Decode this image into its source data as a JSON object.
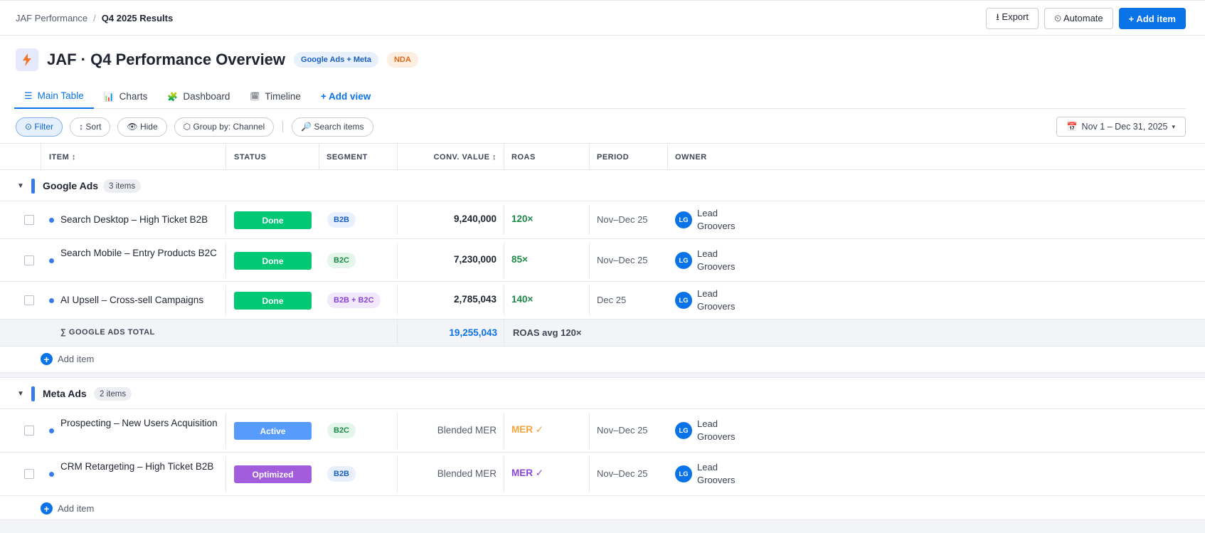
{
  "breadcrumb": {
    "root": "JAF Performance",
    "separator": "/",
    "current": "Q4 2025 Results"
  },
  "actions": {
    "export": "⭳ Export",
    "automate": "⏲ Automate",
    "add_item": "+ Add item"
  },
  "board": {
    "icon": "lightning-icon",
    "title": "JAF · Q4 Performance Overview",
    "tag_channels": "Google Ads + Meta",
    "tag_nda": "NDA"
  },
  "tabs": [
    {
      "icon": "☰",
      "label": "Main Table",
      "active": true
    },
    {
      "icon": "📊",
      "label": "Charts"
    },
    {
      "icon": "🧩",
      "label": "Dashboard"
    },
    {
      "icon": "🗓",
      "label": "Timeline"
    },
    {
      "icon": "",
      "label": "+ Add view"
    }
  ],
  "toolbar": {
    "filter": "⊙ Filter",
    "sort": "↕ Sort",
    "hide": "👁 Hide",
    "group_by": "⬡ Group by: Channel",
    "search": "🔎 Search items",
    "date_icon": "📅",
    "date_range": "Nov 1 – Dec 31, 2025",
    "date_caret": "▾"
  },
  "columns": {
    "item": "ITEM ↕",
    "status": "STATUS",
    "segment": "SEGMENT",
    "conv_value": "CONV. VALUE ↕",
    "roas": "ROAS",
    "period": "PERIOD",
    "owner": "OWNER"
  },
  "groups": [
    {
      "name": "Google Ads",
      "count": "3 items",
      "color": "#3a7bea",
      "rows": [
        {
          "name": "Search Desktop – High Ticket B2B",
          "status": "Done",
          "segment": "B2B",
          "conv": "9,240,000",
          "roas": "120×",
          "period": "Nov–Dec 25",
          "owner_initials": "LG",
          "owner": "Lead Groovers"
        },
        {
          "name": "Search Mobile – Entry Products B2C",
          "status": "Done",
          "segment": "B2C",
          "conv": "7,230,000",
          "roas": "85×",
          "period": "Nov–Dec 25",
          "owner_initials": "LG",
          "owner": "Lead Groovers"
        },
        {
          "name": "AI Upsell – Cross-sell Campaigns",
          "status": "Done",
          "segment": "B2B + B2C",
          "conv": "2,785,043",
          "roas": "140×",
          "period": "Dec 25",
          "owner_initials": "LG",
          "owner": "Lead Groovers"
        }
      ],
      "total_label": "∑ GOOGLE ADS TOTAL",
      "total_value": "19,255,043",
      "total_roas": "ROAS avg 120×",
      "add_label": "Add item"
    },
    {
      "name": "Meta Ads",
      "count": "2 items",
      "color": "#3a7bea",
      "rows": [
        {
          "name": "Prospecting – New Users Acquisition",
          "status": "Active",
          "segment": "B2C",
          "conv": "Blended MER",
          "roas": "MER ✓",
          "period": "Nov–Dec 25",
          "owner_initials": "LG",
          "owner": "Lead Groovers"
        },
        {
          "name": "CRM Retargeting – High Ticket B2B",
          "status": "Optimized",
          "segment": "B2B",
          "conv": "Blended MER",
          "roas": "MER ✓",
          "period": "Nov–Dec 25",
          "owner_initials": "LG",
          "owner": "Lead Groovers"
        }
      ],
      "add_label": "Add item"
    }
  ],
  "colors": {
    "accent": "#0a73e8",
    "status_done": "#00c875",
    "status_active": "#579bfc",
    "status_optimized": "#a25ddc",
    "roas_green": "#1c8a46",
    "roas_orange": "#f5a33b",
    "roas_purple": "#8a45d6"
  }
}
